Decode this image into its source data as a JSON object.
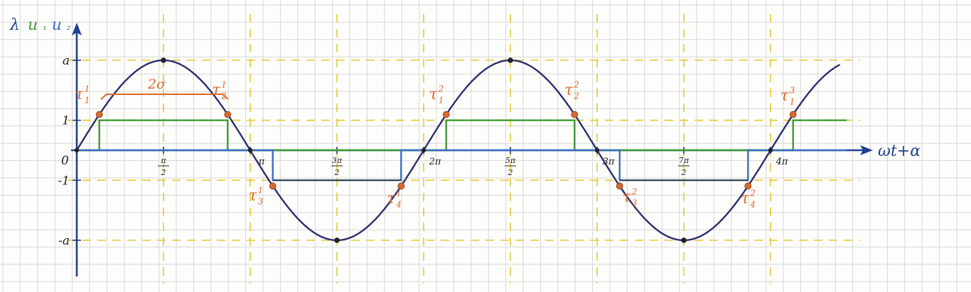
{
  "axes": {
    "y_label_parts": [
      "λ",
      "u",
      "₁",
      "u",
      "₂"
    ],
    "x_label": "ωt+α",
    "origin": "0",
    "y_ticks": [
      {
        "v": 1,
        "label": "a"
      },
      {
        "v": 0.333,
        "label": "1"
      },
      {
        "v": -0.333,
        "label": "-1"
      },
      {
        "v": -1,
        "label": "-a"
      }
    ],
    "x_ticks": [
      {
        "v": 0.5,
        "num": "π",
        "den": "2"
      },
      {
        "v": 1.0,
        "label": "π"
      },
      {
        "v": 1.5,
        "num": "3π",
        "den": "2"
      },
      {
        "v": 2.0,
        "label": "2π"
      },
      {
        "v": 2.5,
        "num": "5π",
        "den": "2"
      },
      {
        "v": 3.0,
        "label": "3π"
      },
      {
        "v": 3.5,
        "num": "7π",
        "den": "2"
      },
      {
        "v": 4.0,
        "label": "4π"
      }
    ]
  },
  "sigma_label": "2σ",
  "tau_points": [
    {
      "label": "τ",
      "sup": "1",
      "sub": "1",
      "x_pi": 0.13
    },
    {
      "label": "τ",
      "sup": "1",
      "sub": "2",
      "x_pi": 0.87
    },
    {
      "label": "τ",
      "sup": "1",
      "sub": "3",
      "x_pi": 1.13
    },
    {
      "label": "τ",
      "sup": "1",
      "sub": "4",
      "x_pi": 1.87
    },
    {
      "label": "τ",
      "sup": "2",
      "sub": "1",
      "x_pi": 2.13
    },
    {
      "label": "τ",
      "sup": "2",
      "sub": "2",
      "x_pi": 2.87
    },
    {
      "label": "τ",
      "sup": "2",
      "sub": "3",
      "x_pi": 3.13
    },
    {
      "label": "τ",
      "sup": "2",
      "sub": "4",
      "x_pi": 3.87
    },
    {
      "label": "τ",
      "sup": "3",
      "sub": "1",
      "x_pi": 4.13
    }
  ],
  "colors": {
    "sine": "#2d2f6e",
    "u1": "#3e9a35",
    "u2": "#3b6fc4",
    "tau": "#d8692e",
    "dash": "#e6c935",
    "grid": "#d7d7d7"
  }
}
